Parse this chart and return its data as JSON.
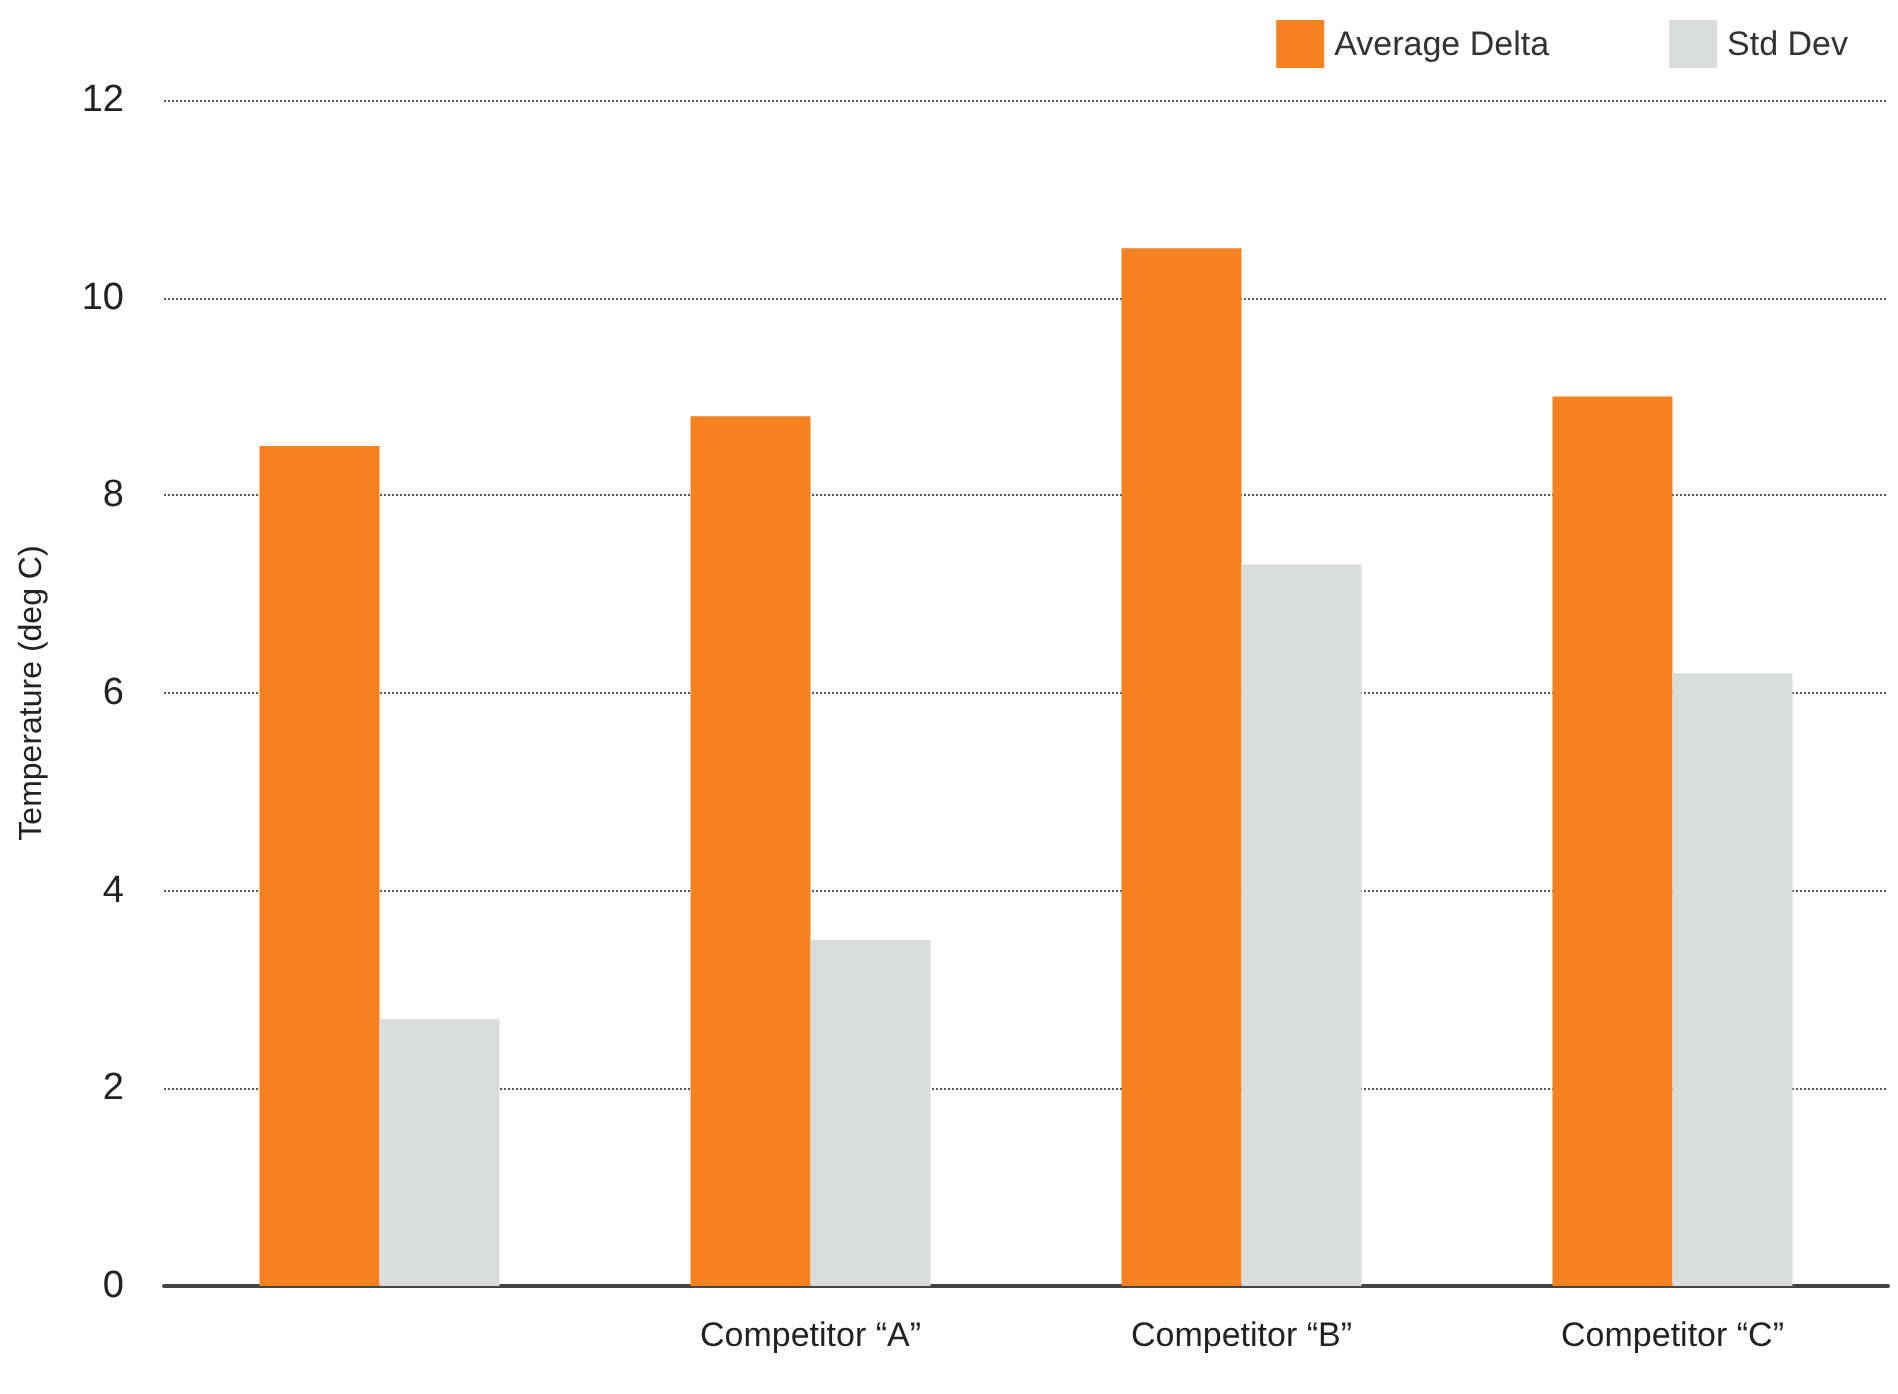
{
  "chart_data": {
    "type": "bar",
    "categories": [
      null,
      "Competitor “A”",
      "Competitor “B”",
      "Competitor “C”"
    ],
    "series": [
      {
        "name": "Average Delta",
        "color": "#f5821f",
        "values": [
          8.5,
          8.8,
          10.5,
          9.0
        ]
      },
      {
        "name": "Std Dev",
        "color": "#d9dcdb",
        "values": [
          2.7,
          3.5,
          7.3,
          6.2
        ]
      }
    ],
    "ylabel": "Temperature (deg C)",
    "ylim": [
      0,
      12
    ],
    "yticks": [
      0,
      2,
      4,
      6,
      8,
      10,
      12
    ],
    "grid": "y",
    "legend": "top right"
  }
}
